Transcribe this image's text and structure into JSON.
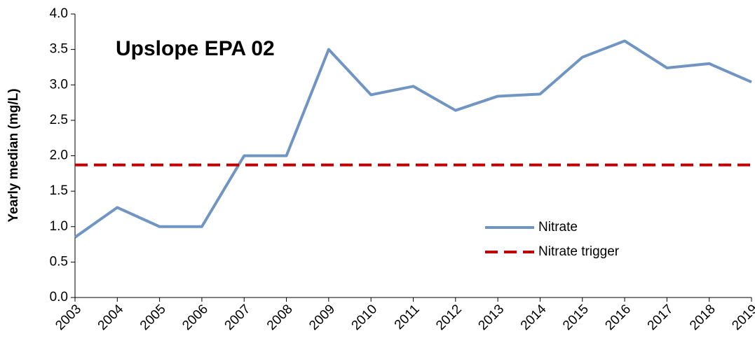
{
  "chart_data": {
    "type": "line",
    "annotation": "Upslope EPA 02",
    "y_label": "Yearly median (mg/L)",
    "categories": [
      "2003",
      "2004",
      "2005",
      "2006",
      "2007",
      "2008",
      "2009",
      "2010",
      "2011",
      "2012",
      "2013",
      "2014",
      "2015",
      "2016",
      "2017",
      "2018",
      "2019"
    ],
    "series": [
      {
        "name": "Nitrate",
        "color": "#7095c2",
        "line_style": "solid",
        "values": [
          0.85,
          1.27,
          1.0,
          1.0,
          2.0,
          2.0,
          3.5,
          2.86,
          2.98,
          2.64,
          2.84,
          2.87,
          3.39,
          3.62,
          3.24,
          3.3,
          3.04
        ]
      },
      {
        "name": "Nitrate trigger",
        "color": "#c00000",
        "line_style": "dashed",
        "values": [
          1.87,
          1.87,
          1.87,
          1.87,
          1.87,
          1.87,
          1.87,
          1.87,
          1.87,
          1.87,
          1.87,
          1.87,
          1.87,
          1.87,
          1.87,
          1.87,
          1.87
        ]
      }
    ],
    "ylim": [
      0,
      4
    ],
    "yticks": [
      {
        "value": 0,
        "label": "0.0"
      },
      {
        "value": 0.5,
        "label": "0.5"
      },
      {
        "value": 1,
        "label": "1.0"
      },
      {
        "value": 1.5,
        "label": "1.5"
      },
      {
        "value": 2,
        "label": "2.0"
      },
      {
        "value": 2.5,
        "label": "2.5"
      },
      {
        "value": 3,
        "label": "3.0"
      },
      {
        "value": 3.5,
        "label": "3.5"
      },
      {
        "value": 4,
        "label": "4.0"
      }
    ],
    "grid": false
  }
}
